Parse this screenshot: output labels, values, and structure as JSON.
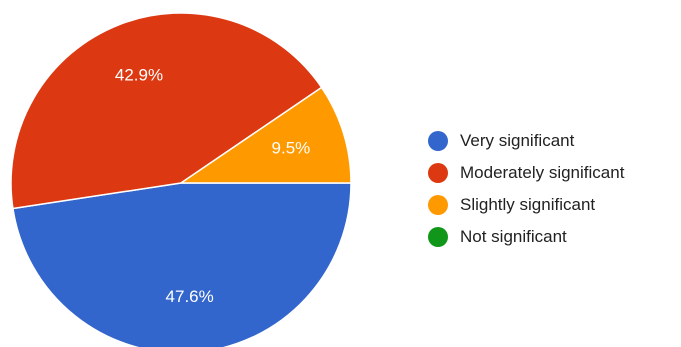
{
  "chart_data": {
    "type": "pie",
    "title": "",
    "series": [
      {
        "categories": [
          "Very significant",
          "Moderately significant",
          "Slightly significant",
          "Not significant"
        ],
        "values": [
          47.6,
          42.9,
          9.5,
          0
        ],
        "labels": [
          "47.6%",
          "42.9%",
          "9.5%",
          ""
        ],
        "colors": [
          "#3366cc",
          "#dc3912",
          "#ff9900",
          "#109618"
        ]
      }
    ],
    "legend": {
      "position": "right",
      "entries": [
        {
          "label": "Very significant",
          "color": "#3366cc"
        },
        {
          "label": "Moderately significant",
          "color": "#dc3912"
        },
        {
          "label": "Slightly significant",
          "color": "#ff9900"
        },
        {
          "label": "Not significant",
          "color": "#109618"
        }
      ]
    }
  }
}
